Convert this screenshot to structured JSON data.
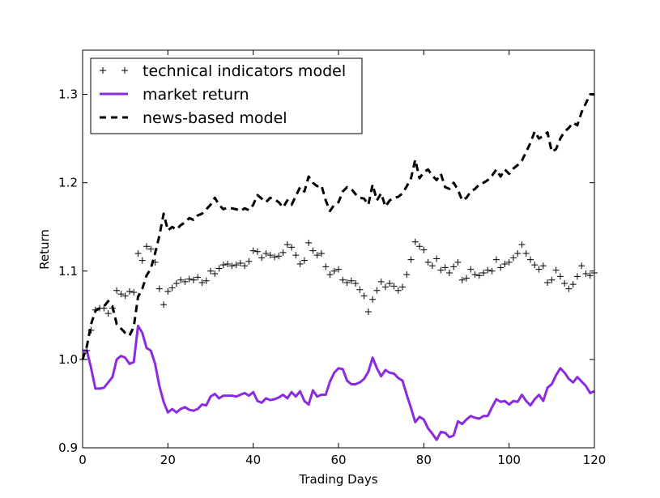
{
  "chart_data": {
    "type": "line",
    "title": "",
    "xlabel": "Trading Days",
    "ylabel": "Return",
    "xlim": [
      0,
      120
    ],
    "ylim": [
      0.9,
      1.35
    ],
    "xticks": [
      0,
      20,
      40,
      60,
      80,
      100,
      120
    ],
    "xtick_labels": [
      "0",
      "20",
      "40",
      "60",
      "80",
      "100",
      "120"
    ],
    "yticks": [
      0.9,
      1.0,
      1.1,
      1.2,
      1.3
    ],
    "ytick_labels": [
      "0.9",
      "1.0",
      "1.1",
      "1.2",
      "1.3"
    ],
    "grid": false,
    "legend_position": "top-left",
    "series": [
      {
        "name": "technical indicators model",
        "style": "markers",
        "color": "#000000",
        "x": [
          0,
          1,
          2,
          3,
          4,
          5,
          6,
          7,
          8,
          9,
          10,
          11,
          12,
          13,
          14,
          15,
          16,
          17,
          18,
          19,
          20,
          21,
          22,
          23,
          24,
          25,
          26,
          27,
          28,
          29,
          30,
          31,
          32,
          33,
          34,
          35,
          36,
          37,
          38,
          39,
          40,
          41,
          42,
          43,
          44,
          45,
          46,
          47,
          48,
          49,
          50,
          51,
          52,
          53,
          54,
          55,
          56,
          57,
          58,
          59,
          60,
          61,
          62,
          63,
          64,
          65,
          66,
          67,
          68,
          69,
          70,
          71,
          72,
          73,
          74,
          75,
          76,
          77,
          78,
          79,
          80,
          81,
          82,
          83,
          84,
          85,
          86,
          87,
          88,
          89,
          90,
          91,
          92,
          93,
          94,
          95,
          96,
          97,
          98,
          99,
          100,
          101,
          102,
          103,
          104,
          105,
          106,
          107,
          108,
          109,
          110,
          111,
          112,
          113,
          114,
          115,
          116,
          117,
          118,
          119,
          120
        ],
        "values": [
          1.0,
          1.01,
          1.033,
          1.056,
          1.058,
          1.058,
          1.052,
          1.058,
          1.078,
          1.074,
          1.072,
          1.077,
          1.076,
          1.12,
          1.112,
          1.128,
          1.125,
          1.11,
          1.08,
          1.062,
          1.077,
          1.081,
          1.086,
          1.09,
          1.088,
          1.091,
          1.09,
          1.093,
          1.087,
          1.089,
          1.1,
          1.097,
          1.103,
          1.107,
          1.108,
          1.106,
          1.107,
          1.109,
          1.106,
          1.111,
          1.123,
          1.122,
          1.115,
          1.12,
          1.118,
          1.116,
          1.117,
          1.121,
          1.13,
          1.127,
          1.118,
          1.108,
          1.112,
          1.132,
          1.123,
          1.118,
          1.12,
          1.105,
          1.096,
          1.1,
          1.102,
          1.09,
          1.087,
          1.089,
          1.086,
          1.079,
          1.072,
          1.054,
          1.068,
          1.078,
          1.088,
          1.082,
          1.086,
          1.083,
          1.078,
          1.082,
          1.096,
          1.113,
          1.133,
          1.128,
          1.124,
          1.11,
          1.106,
          1.114,
          1.101,
          1.104,
          1.098,
          1.105,
          1.11,
          1.09,
          1.092,
          1.102,
          1.096,
          1.095,
          1.098,
          1.101,
          1.1,
          1.113,
          1.104,
          1.108,
          1.11,
          1.115,
          1.12,
          1.13,
          1.12,
          1.113,
          1.107,
          1.102,
          1.106,
          1.087,
          1.09,
          1.101,
          1.094,
          1.086,
          1.08,
          1.085,
          1.094,
          1.106,
          1.097,
          1.095,
          1.098
        ]
      },
      {
        "name": "market return",
        "style": "solid",
        "color": "#8a2be2",
        "x": [
          0,
          1,
          2,
          3,
          4,
          5,
          6,
          7,
          8,
          9,
          10,
          11,
          12,
          13,
          14,
          15,
          16,
          17,
          18,
          19,
          20,
          21,
          22,
          23,
          24,
          25,
          26,
          27,
          28,
          29,
          30,
          31,
          32,
          33,
          34,
          35,
          36,
          37,
          38,
          39,
          40,
          41,
          42,
          43,
          44,
          45,
          46,
          47,
          48,
          49,
          50,
          51,
          52,
          53,
          54,
          55,
          56,
          57,
          58,
          59,
          60,
          61,
          62,
          63,
          64,
          65,
          66,
          67,
          68,
          69,
          70,
          71,
          72,
          73,
          74,
          75,
          76,
          77,
          78,
          79,
          80,
          81,
          82,
          83,
          84,
          85,
          86,
          87,
          88,
          89,
          90,
          91,
          92,
          93,
          94,
          95,
          96,
          97,
          98,
          99,
          100,
          101,
          102,
          103,
          104,
          105,
          106,
          107,
          108,
          109,
          110,
          111,
          112,
          113,
          114,
          115,
          116,
          117,
          118,
          119,
          120
        ],
        "values": [
          1.01,
          1.01,
          0.99,
          0.967,
          0.967,
          0.968,
          0.974,
          0.98,
          1.0,
          1.004,
          1.002,
          0.995,
          0.997,
          1.038,
          1.03,
          1.013,
          1.01,
          0.995,
          0.97,
          0.952,
          0.94,
          0.944,
          0.94,
          0.944,
          0.946,
          0.943,
          0.942,
          0.944,
          0.949,
          0.948,
          0.958,
          0.961,
          0.956,
          0.959,
          0.959,
          0.959,
          0.958,
          0.96,
          0.962,
          0.959,
          0.963,
          0.953,
          0.951,
          0.956,
          0.954,
          0.955,
          0.957,
          0.96,
          0.956,
          0.963,
          0.958,
          0.964,
          0.953,
          0.949,
          0.965,
          0.958,
          0.96,
          0.96,
          0.975,
          0.985,
          0.99,
          0.989,
          0.976,
          0.972,
          0.972,
          0.974,
          0.978,
          0.986,
          1.002,
          0.99,
          0.981,
          0.988,
          0.985,
          0.984,
          0.979,
          0.976,
          0.96,
          0.945,
          0.929,
          0.935,
          0.932,
          0.922,
          0.916,
          0.909,
          0.918,
          0.917,
          0.912,
          0.914,
          0.93,
          0.927,
          0.932,
          0.936,
          0.934,
          0.933,
          0.936,
          0.936,
          0.946,
          0.955,
          0.952,
          0.953,
          0.949,
          0.953,
          0.952,
          0.96,
          0.953,
          0.948,
          0.955,
          0.96,
          0.953,
          0.968,
          0.972,
          0.982,
          0.99,
          0.985,
          0.978,
          0.974,
          0.98,
          0.975,
          0.97,
          0.962,
          0.964
        ]
      },
      {
        "name": "news-based model",
        "style": "dashed",
        "color": "#000000",
        "x": [
          0,
          1,
          2,
          3,
          4,
          5,
          6,
          7,
          8,
          9,
          10,
          11,
          12,
          13,
          14,
          15,
          16,
          17,
          18,
          19,
          20,
          21,
          22,
          23,
          24,
          25,
          26,
          27,
          28,
          29,
          30,
          31,
          32,
          33,
          34,
          35,
          36,
          37,
          38,
          39,
          40,
          41,
          42,
          43,
          44,
          45,
          46,
          47,
          48,
          49,
          50,
          51,
          52,
          53,
          54,
          55,
          56,
          57,
          58,
          59,
          60,
          61,
          62,
          63,
          64,
          65,
          66,
          67,
          68,
          69,
          70,
          71,
          72,
          73,
          74,
          75,
          76,
          77,
          78,
          79,
          80,
          81,
          82,
          83,
          84,
          85,
          86,
          87,
          88,
          89,
          90,
          91,
          92,
          93,
          94,
          95,
          96,
          97,
          98,
          99,
          100,
          101,
          102,
          103,
          104,
          105,
          106,
          107,
          108,
          109,
          110,
          111,
          112,
          113,
          114,
          115,
          116,
          117,
          118,
          119,
          120
        ],
        "values": [
          1.0,
          1.015,
          1.04,
          1.055,
          1.058,
          1.06,
          1.066,
          1.06,
          1.04,
          1.035,
          1.03,
          1.027,
          1.037,
          1.071,
          1.08,
          1.095,
          1.103,
          1.12,
          1.14,
          1.165,
          1.146,
          1.15,
          1.147,
          1.152,
          1.155,
          1.16,
          1.158,
          1.163,
          1.165,
          1.17,
          1.175,
          1.183,
          1.175,
          1.17,
          1.172,
          1.171,
          1.17,
          1.168,
          1.171,
          1.169,
          1.175,
          1.186,
          1.182,
          1.178,
          1.183,
          1.181,
          1.178,
          1.172,
          1.18,
          1.175,
          1.185,
          1.195,
          1.19,
          1.207,
          1.2,
          1.196,
          1.197,
          1.18,
          1.168,
          1.175,
          1.178,
          1.19,
          1.195,
          1.193,
          1.187,
          1.183,
          1.182,
          1.175,
          1.198,
          1.18,
          1.188,
          1.173,
          1.18,
          1.183,
          1.184,
          1.188,
          1.196,
          1.205,
          1.226,
          1.205,
          1.212,
          1.215,
          1.208,
          1.203,
          1.21,
          1.195,
          1.193,
          1.2,
          1.192,
          1.18,
          1.183,
          1.19,
          1.193,
          1.198,
          1.2,
          1.203,
          1.208,
          1.215,
          1.207,
          1.215,
          1.21,
          1.216,
          1.22,
          1.225,
          1.235,
          1.245,
          1.258,
          1.25,
          1.253,
          1.257,
          1.235,
          1.238,
          1.25,
          1.258,
          1.262,
          1.268,
          1.265,
          1.28,
          1.29,
          1.3,
          1.3
        ]
      }
    ]
  }
}
